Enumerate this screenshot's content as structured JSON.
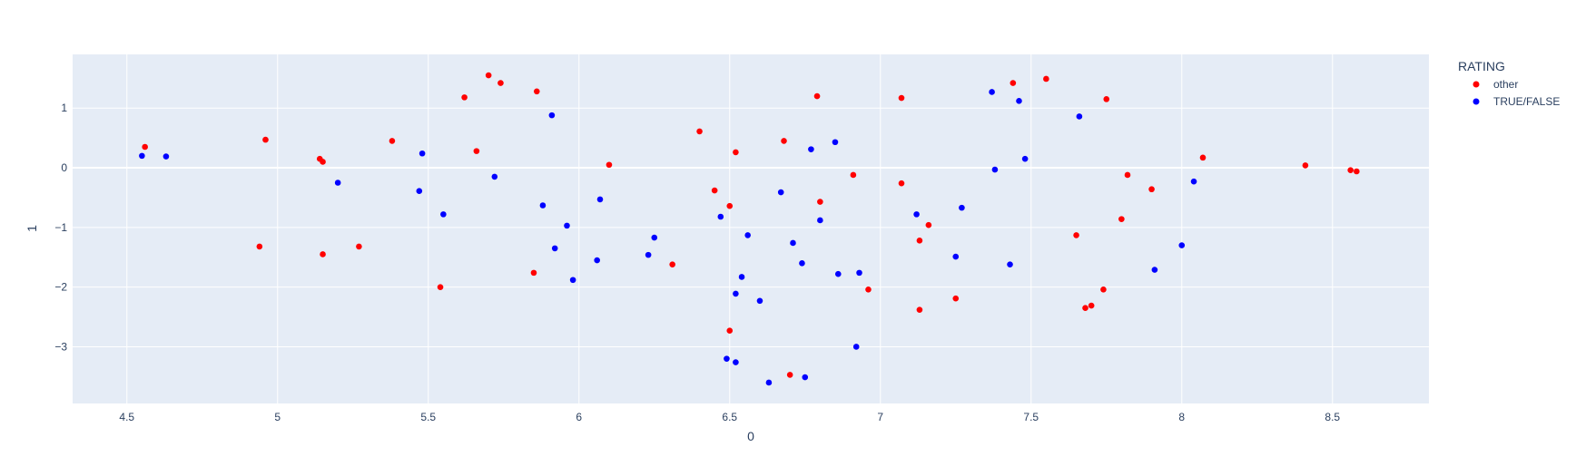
{
  "chart_data": {
    "type": "scatter",
    "title": "",
    "xlabel": "0",
    "ylabel": "1",
    "xlim": [
      4.32,
      8.82
    ],
    "ylim": [
      -3.95,
      1.9
    ],
    "xticks": [
      4.5,
      5,
      5.5,
      6,
      6.5,
      7,
      7.5,
      8,
      8.5
    ],
    "xtick_labels": [
      "4.5",
      "5",
      "5.5",
      "6",
      "6.5",
      "7",
      "7.5",
      "8",
      "8.5"
    ],
    "yticks": [
      -3,
      -2,
      -1,
      0,
      1
    ],
    "ytick_labels": [
      "−3",
      "−2",
      "−1",
      "0",
      "1"
    ],
    "grid": true,
    "legend": {
      "title": "RATING",
      "placement": "right"
    },
    "series": [
      {
        "name": "other",
        "color": "#ff0000",
        "points": [
          [
            4.56,
            0.35
          ],
          [
            4.94,
            -1.32
          ],
          [
            4.96,
            0.47
          ],
          [
            5.14,
            0.15
          ],
          [
            5.15,
            0.1
          ],
          [
            5.15,
            -1.45
          ],
          [
            5.27,
            -1.32
          ],
          [
            5.38,
            0.45
          ],
          [
            5.54,
            -2.0
          ],
          [
            5.62,
            1.18
          ],
          [
            5.66,
            0.28
          ],
          [
            5.7,
            1.55
          ],
          [
            5.74,
            1.42
          ],
          [
            5.85,
            -1.76
          ],
          [
            5.86,
            1.28
          ],
          [
            6.1,
            0.05
          ],
          [
            6.31,
            -1.62
          ],
          [
            6.4,
            0.61
          ],
          [
            6.45,
            -0.38
          ],
          [
            6.5,
            -0.64
          ],
          [
            6.5,
            -2.73
          ],
          [
            6.52,
            0.26
          ],
          [
            6.68,
            0.45
          ],
          [
            6.7,
            -3.47
          ],
          [
            6.79,
            1.2
          ],
          [
            6.8,
            -0.57
          ],
          [
            6.91,
            -0.12
          ],
          [
            6.96,
            -2.04
          ],
          [
            7.07,
            1.17
          ],
          [
            7.07,
            -0.26
          ],
          [
            7.13,
            -1.22
          ],
          [
            7.13,
            -2.38
          ],
          [
            7.16,
            -0.96
          ],
          [
            7.25,
            -2.19
          ],
          [
            7.44,
            1.42
          ],
          [
            7.55,
            1.49
          ],
          [
            7.65,
            -1.13
          ],
          [
            7.68,
            -2.35
          ],
          [
            7.7,
            -2.31
          ],
          [
            7.74,
            -2.04
          ],
          [
            7.75,
            1.15
          ],
          [
            7.8,
            -0.86
          ],
          [
            7.82,
            -0.12
          ],
          [
            7.9,
            -0.36
          ],
          [
            8.07,
            0.17
          ],
          [
            8.41,
            0.04
          ],
          [
            8.56,
            -0.04
          ],
          [
            8.58,
            -0.06
          ]
        ]
      },
      {
        "name": "TRUE/FALSE",
        "color": "#0000ff",
        "points": [
          [
            4.55,
            0.2
          ],
          [
            4.63,
            0.19
          ],
          [
            5.2,
            -0.25
          ],
          [
            5.47,
            -0.39
          ],
          [
            5.48,
            0.24
          ],
          [
            5.55,
            -0.78
          ],
          [
            5.72,
            -0.15
          ],
          [
            5.88,
            -0.63
          ],
          [
            5.91,
            0.88
          ],
          [
            5.92,
            -1.35
          ],
          [
            5.96,
            -0.97
          ],
          [
            5.98,
            -1.88
          ],
          [
            6.06,
            -1.55
          ],
          [
            6.07,
            -0.53
          ],
          [
            6.23,
            -1.46
          ],
          [
            6.25,
            -1.17
          ],
          [
            6.47,
            -0.82
          ],
          [
            6.49,
            -3.2
          ],
          [
            6.52,
            -2.11
          ],
          [
            6.52,
            -3.26
          ],
          [
            6.54,
            -1.83
          ],
          [
            6.56,
            -1.13
          ],
          [
            6.6,
            -2.23
          ],
          [
            6.63,
            -3.6
          ],
          [
            6.67,
            -0.41
          ],
          [
            6.71,
            -1.26
          ],
          [
            6.74,
            -1.6
          ],
          [
            6.75,
            -3.51
          ],
          [
            6.77,
            0.31
          ],
          [
            6.8,
            -0.88
          ],
          [
            6.85,
            0.43
          ],
          [
            6.86,
            -1.78
          ],
          [
            6.92,
            -3.0
          ],
          [
            6.93,
            -1.76
          ],
          [
            7.12,
            -0.78
          ],
          [
            7.25,
            -1.49
          ],
          [
            7.27,
            -0.67
          ],
          [
            7.37,
            1.27
          ],
          [
            7.38,
            -0.03
          ],
          [
            7.43,
            -1.62
          ],
          [
            7.46,
            1.12
          ],
          [
            7.48,
            0.15
          ],
          [
            7.66,
            0.86
          ],
          [
            7.91,
            -1.71
          ],
          [
            8.0,
            -1.3
          ],
          [
            8.04,
            -0.23
          ]
        ]
      }
    ]
  }
}
